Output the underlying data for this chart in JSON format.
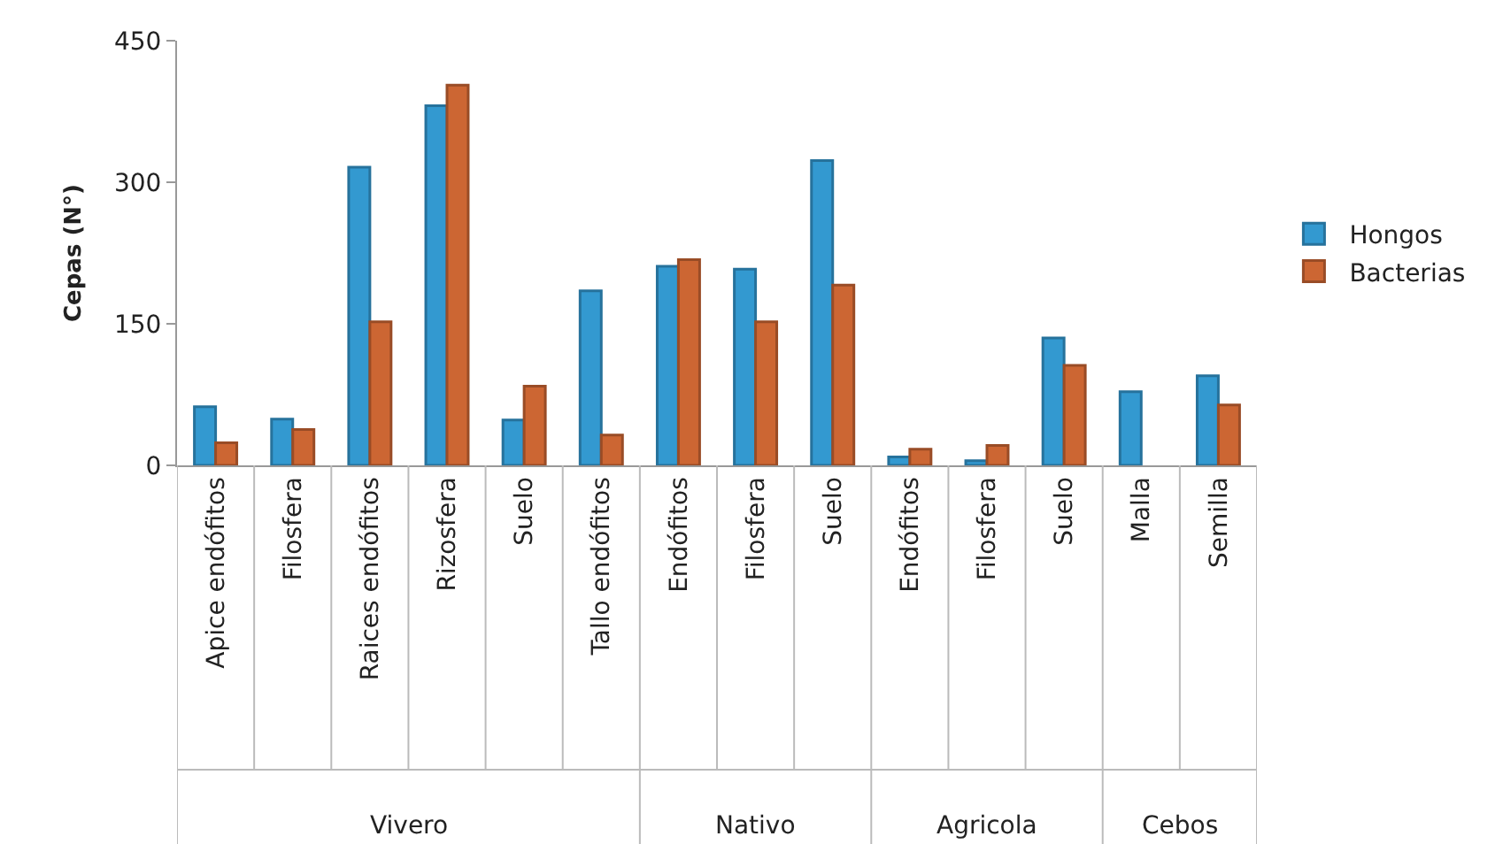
{
  "chart_data": {
    "type": "bar",
    "ylabel": "Cepas (N°)",
    "categories": [
      "Apice endófitos",
      "Filosfera",
      "Raices endófitos",
      "Rizosfera",
      "Suelo",
      "Tallo endófitos",
      "Endófitos",
      "Filosfera",
      "Suelo",
      "Endófitos",
      "Filosfera",
      "Suelo",
      "Malla",
      "Semilla"
    ],
    "series": [
      {
        "name": "Hongos",
        "color": "#3399d0",
        "values": [
          62,
          49,
          316,
          381,
          48,
          185,
          211,
          208,
          323,
          9,
          5,
          135,
          78,
          95
        ]
      },
      {
        "name": "Bacterias",
        "color": "#cc6633",
        "values": [
          24,
          38,
          152,
          403,
          84,
          32,
          218,
          152,
          191,
          17,
          21,
          106,
          null,
          64
        ]
      }
    ],
    "annotations": [
      "Vivero",
      "Nativo",
      "Agricola",
      "Cebos"
    ],
    "ylim": [
      0,
      450
    ],
    "yticks": [
      0,
      150,
      300,
      450
    ],
    "legend": "right"
  }
}
